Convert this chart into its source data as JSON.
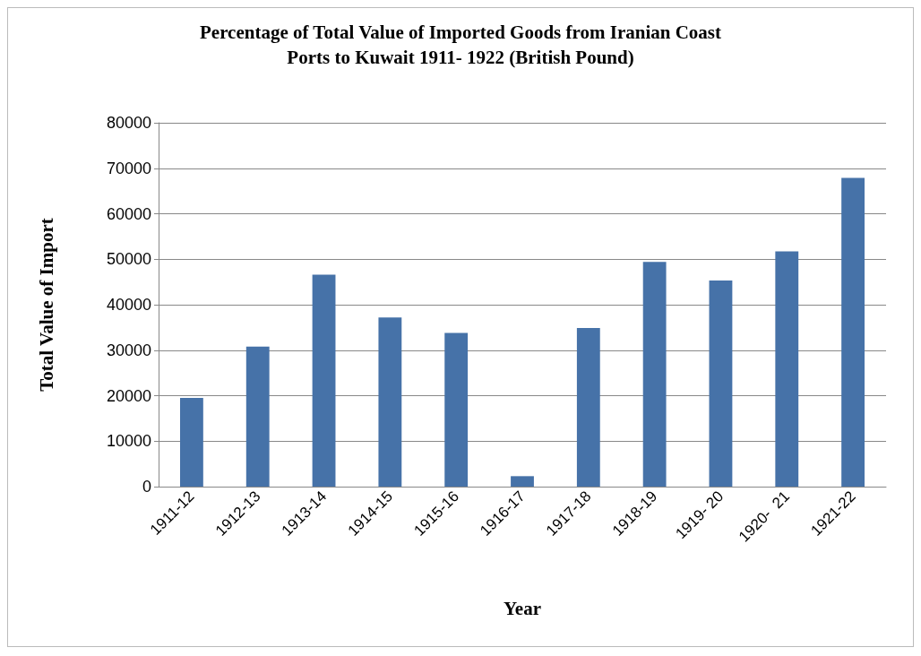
{
  "chart_data": {
    "type": "bar",
    "title": "Percentage of Total Value of Imported Goods from Iranian Coast\nPorts to Kuwait 1911- 1922 (British Pound)",
    "xlabel": "Year",
    "ylabel": "Total Value of Import",
    "categories": [
      "1911-12",
      "1912-13",
      "1913-14",
      "1914-15",
      "1915-16",
      "1916-17",
      "1917-18",
      "1918-19",
      "1919- 20",
      "1920-  21",
      "1921-22"
    ],
    "values": [
      19500,
      30800,
      46600,
      37200,
      33800,
      2300,
      34900,
      49400,
      45300,
      51700,
      67900
    ],
    "color": "#4672a8",
    "ylim": [
      0,
      80000
    ],
    "yticks": [
      0,
      10000,
      20000,
      30000,
      40000,
      50000,
      60000,
      70000,
      80000
    ],
    "grid": "y"
  }
}
